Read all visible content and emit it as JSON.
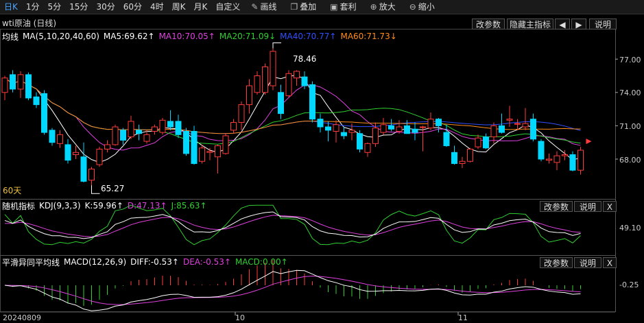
{
  "toolbar": {
    "periods": [
      "日K",
      "1分",
      "5分",
      "15分",
      "30分",
      "60分",
      "4时",
      "周K",
      "月K",
      "自定义"
    ],
    "active_period": "日K",
    "tools": [
      {
        "label": "画线",
        "icon": "pencil-icon"
      },
      {
        "label": "叠加",
        "icon": "layers-icon"
      },
      {
        "label": "套利",
        "icon": "briefcase-icon"
      },
      {
        "label": "放大",
        "icon": "zoom-in-icon"
      },
      {
        "label": "缩小",
        "icon": "zoom-out-icon"
      }
    ]
  },
  "main_panel": {
    "title": "wti原油 (日线)",
    "indicator_name": "均线",
    "indicator_params": "MA(5,10,20,40,60)",
    "ma": [
      {
        "label": "MA5:69.62↑",
        "color": "#ffffff"
      },
      {
        "label": "MA10:70.05↑",
        "color": "#e040e0"
      },
      {
        "label": "MA20:71.09↓",
        "color": "#30d030"
      },
      {
        "label": "MA40:70.77↑",
        "color": "#3050ff"
      },
      {
        "label": "MA60:71.73↓",
        "color": "#ff8c1a"
      }
    ],
    "buttons": {
      "params": "改参数",
      "hide": "隐藏主指标",
      "left": "◀",
      "right": "▶",
      "help": "说明"
    },
    "y_ticks": [
      "77.00",
      "74.00",
      "71.00",
      "68.00"
    ],
    "high_label": "78.46",
    "low_label": "65.27",
    "period_label": "60天"
  },
  "kdj_panel": {
    "name": "随机指标",
    "params": "KDJ(9,3,3)",
    "k": {
      "label": "K:59.96↑",
      "color": "#ffffff"
    },
    "d": {
      "label": "D:47.13↑",
      "color": "#e040e0"
    },
    "j": {
      "label": "J:85.63↑",
      "color": "#30d030"
    },
    "buttons": {
      "params": "改参数",
      "help": "说明",
      "close": "X"
    },
    "y_tick": "49.10"
  },
  "macd_panel": {
    "name": "平滑异同平均线",
    "params": "MACD(12,26,9)",
    "diff": {
      "label": "DIFF:-0.53↑",
      "color": "#ffffff"
    },
    "dea": {
      "label": "DEA:-0.53↑",
      "color": "#e040e0"
    },
    "macd": {
      "label": "MACD:0.00↑",
      "color": "#30d030"
    },
    "buttons": {
      "params": "改参数",
      "help": "说明",
      "close": "X"
    },
    "y_tick": "-0.25"
  },
  "x_labels": [
    "20240809",
    "10",
    "11"
  ],
  "chart_data": {
    "type": "candlestick",
    "title": "wti原油 (日线)",
    "y_range": [
      65.27,
      78.46
    ],
    "candles": [
      {
        "o": 74.0,
        "h": 75.5,
        "l": 73.3,
        "c": 75.3
      },
      {
        "o": 75.6,
        "h": 76.0,
        "l": 74.0,
        "c": 74.3
      },
      {
        "o": 74.3,
        "h": 75.9,
        "l": 73.5,
        "c": 75.6
      },
      {
        "o": 75.6,
        "h": 75.8,
        "l": 73.3,
        "c": 73.5
      },
      {
        "o": 73.6,
        "h": 74.0,
        "l": 72.6,
        "c": 72.9
      },
      {
        "o": 73.9,
        "h": 74.2,
        "l": 70.2,
        "c": 70.4
      },
      {
        "o": 70.6,
        "h": 70.8,
        "l": 69.2,
        "c": 69.5
      },
      {
        "o": 69.4,
        "h": 70.6,
        "l": 69.0,
        "c": 70.2
      },
      {
        "o": 69.3,
        "h": 69.8,
        "l": 67.6,
        "c": 67.9
      },
      {
        "o": 68.4,
        "h": 69.2,
        "l": 68.0,
        "c": 68.6
      },
      {
        "o": 68.2,
        "h": 69.5,
        "l": 65.9,
        "c": 66.0
      },
      {
        "o": 66.1,
        "h": 67.3,
        "l": 65.27,
        "c": 67.1
      },
      {
        "o": 67.5,
        "h": 69.1,
        "l": 67.3,
        "c": 68.9
      },
      {
        "o": 68.9,
        "h": 69.7,
        "l": 68.6,
        "c": 69.3
      },
      {
        "o": 69.3,
        "h": 71.1,
        "l": 69.2,
        "c": 70.9
      },
      {
        "o": 70.6,
        "h": 70.8,
        "l": 69.3,
        "c": 69.7
      },
      {
        "o": 70.0,
        "h": 71.9,
        "l": 69.8,
        "c": 71.4
      },
      {
        "o": 70.6,
        "h": 71.1,
        "l": 69.7,
        "c": 70.3
      },
      {
        "o": 69.6,
        "h": 70.6,
        "l": 69.4,
        "c": 70.2
      },
      {
        "o": 70.5,
        "h": 71.1,
        "l": 70.2,
        "c": 70.9
      },
      {
        "o": 70.4,
        "h": 71.7,
        "l": 70.2,
        "c": 71.5
      },
      {
        "o": 71.4,
        "h": 72.4,
        "l": 70.6,
        "c": 70.9
      },
      {
        "o": 71.4,
        "h": 72.0,
        "l": 69.9,
        "c": 70.2
      },
      {
        "o": 70.5,
        "h": 70.8,
        "l": 68.3,
        "c": 68.5
      },
      {
        "o": 70.5,
        "h": 71.0,
        "l": 67.5,
        "c": 67.6
      },
      {
        "o": 67.8,
        "h": 69.3,
        "l": 67.6,
        "c": 69.0
      },
      {
        "o": 68.6,
        "h": 69.0,
        "l": 67.9,
        "c": 68.7
      },
      {
        "o": 68.2,
        "h": 69.3,
        "l": 66.7,
        "c": 69.2
      },
      {
        "o": 68.5,
        "h": 70.3,
        "l": 68.4,
        "c": 70.1
      },
      {
        "o": 70.6,
        "h": 71.6,
        "l": 70.3,
        "c": 71.3
      },
      {
        "o": 71.3,
        "h": 73.2,
        "l": 70.6,
        "c": 72.9
      },
      {
        "o": 72.9,
        "h": 75.2,
        "l": 72.1,
        "c": 74.6
      },
      {
        "o": 74.0,
        "h": 75.9,
        "l": 73.8,
        "c": 75.5
      },
      {
        "o": 74.0,
        "h": 76.6,
        "l": 73.8,
        "c": 76.3
      },
      {
        "o": 74.6,
        "h": 78.46,
        "l": 74.2,
        "c": 77.7
      },
      {
        "o": 74.0,
        "h": 74.7,
        "l": 71.6,
        "c": 72.1
      },
      {
        "o": 73.7,
        "h": 76.0,
        "l": 73.6,
        "c": 75.7
      },
      {
        "o": 75.3,
        "h": 76.0,
        "l": 74.6,
        "c": 75.9
      },
      {
        "o": 75.4,
        "h": 75.9,
        "l": 74.3,
        "c": 74.6
      },
      {
        "o": 74.7,
        "h": 75.0,
        "l": 71.3,
        "c": 71.6
      },
      {
        "o": 71.6,
        "h": 72.1,
        "l": 70.4,
        "c": 70.9
      },
      {
        "o": 70.9,
        "h": 71.4,
        "l": 69.6,
        "c": 70.6
      },
      {
        "o": 70.5,
        "h": 71.5,
        "l": 69.5,
        "c": 71.1
      },
      {
        "o": 70.4,
        "h": 70.9,
        "l": 69.8,
        "c": 70.1
      },
      {
        "o": 70.4,
        "h": 71.2,
        "l": 69.7,
        "c": 70.6
      },
      {
        "o": 70.3,
        "h": 70.6,
        "l": 68.6,
        "c": 68.9
      },
      {
        "o": 68.6,
        "h": 69.5,
        "l": 68.2,
        "c": 69.4
      },
      {
        "o": 69.4,
        "h": 71.3,
        "l": 69.1,
        "c": 70.8
      },
      {
        "o": 70.4,
        "h": 71.7,
        "l": 70.2,
        "c": 71.1
      },
      {
        "o": 71.0,
        "h": 71.6,
        "l": 70.5,
        "c": 70.7
      },
      {
        "o": 70.5,
        "h": 71.5,
        "l": 70.3,
        "c": 70.9
      },
      {
        "o": 71.0,
        "h": 71.5,
        "l": 70.3,
        "c": 70.3
      },
      {
        "o": 70.7,
        "h": 71.3,
        "l": 69.7,
        "c": 70.4
      },
      {
        "o": 70.9,
        "h": 71.0,
        "l": 68.7,
        "c": 70.9
      },
      {
        "o": 70.8,
        "h": 72.2,
        "l": 70.6,
        "c": 71.6
      },
      {
        "o": 71.6,
        "h": 71.7,
        "l": 70.4,
        "c": 71.0
      },
      {
        "o": 70.4,
        "h": 71.1,
        "l": 69.1,
        "c": 69.2
      },
      {
        "o": 68.6,
        "h": 69.2,
        "l": 67.5,
        "c": 67.6
      },
      {
        "o": 67.6,
        "h": 68.2,
        "l": 67.2,
        "c": 67.8
      },
      {
        "o": 67.8,
        "h": 69.0,
        "l": 67.7,
        "c": 68.9
      },
      {
        "o": 69.1,
        "h": 70.2,
        "l": 68.9,
        "c": 69.9
      },
      {
        "o": 70.0,
        "h": 70.3,
        "l": 68.9,
        "c": 69.0
      },
      {
        "o": 70.0,
        "h": 71.3,
        "l": 69.4,
        "c": 71.0
      },
      {
        "o": 71.0,
        "h": 72.1,
        "l": 70.3,
        "c": 70.4
      },
      {
        "o": 71.5,
        "h": 72.8,
        "l": 70.9,
        "c": 71.6
      },
      {
        "o": 71.2,
        "h": 71.6,
        "l": 70.6,
        "c": 71.2
      },
      {
        "o": 70.9,
        "h": 72.6,
        "l": 70.6,
        "c": 71.2
      },
      {
        "o": 71.6,
        "h": 72.1,
        "l": 69.6,
        "c": 69.8
      },
      {
        "o": 69.6,
        "h": 69.8,
        "l": 67.8,
        "c": 68.0
      },
      {
        "o": 67.9,
        "h": 68.5,
        "l": 67.6,
        "c": 68.0
      },
      {
        "o": 67.7,
        "h": 68.7,
        "l": 67.0,
        "c": 68.3
      },
      {
        "o": 68.3,
        "h": 68.8,
        "l": 67.9,
        "c": 68.4
      },
      {
        "o": 68.4,
        "h": 68.7,
        "l": 66.9,
        "c": 67.0
      },
      {
        "o": 67.0,
        "h": 69.1,
        "l": 66.6,
        "c": 68.8
      }
    ]
  }
}
